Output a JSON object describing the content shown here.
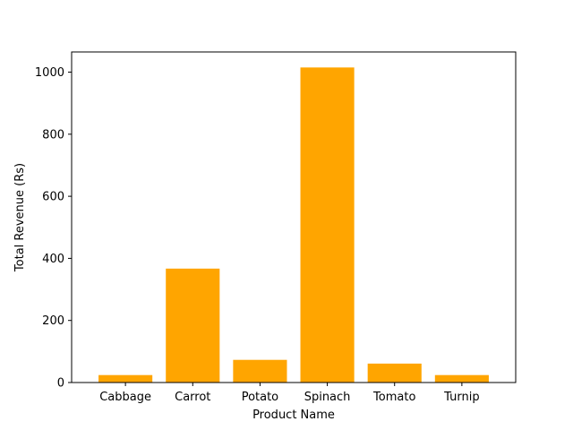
{
  "chart_data": {
    "type": "bar",
    "title": "",
    "xlabel": "Product Name",
    "ylabel": "Total Revenue (Rs)",
    "categories": [
      "Cabbage",
      "Carrot",
      "Potato",
      "Spinach",
      "Tomato",
      "Turnip"
    ],
    "values": [
      24,
      367,
      73,
      1015,
      61,
      24
    ],
    "ylim": [
      0,
      1065
    ],
    "yticks": [
      0,
      200,
      400,
      600,
      800,
      1000
    ],
    "grid": false,
    "bar_color": "#ffa500"
  }
}
